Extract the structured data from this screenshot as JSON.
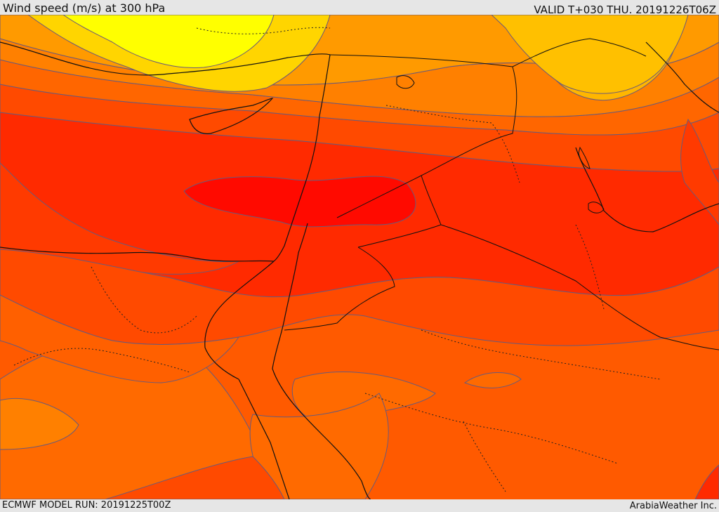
{
  "header": {
    "title": "Wind speed (m/s) at 300 hPa",
    "valid": "VALID T+030 THU. 20191226T06Z"
  },
  "footer": {
    "model_run": "ECMWF MODEL RUN: 20191225T00Z",
    "credit": "ArabiaWeather Inc."
  },
  "map": {
    "variable": "wind-speed",
    "level": "300 hPa",
    "colors": {
      "band_1": "#ffff00",
      "band_2": "#ffd500",
      "band_3": "#ffb600",
      "band_4": "#ff9a00",
      "band_5": "#ff8000",
      "band_6": "#ff6600",
      "band_7": "#ff4a00",
      "band_8": "#ff2a00",
      "band_9": "#ff0a00",
      "contour": "#6a5a7a",
      "coast": "#111111"
    }
  }
}
